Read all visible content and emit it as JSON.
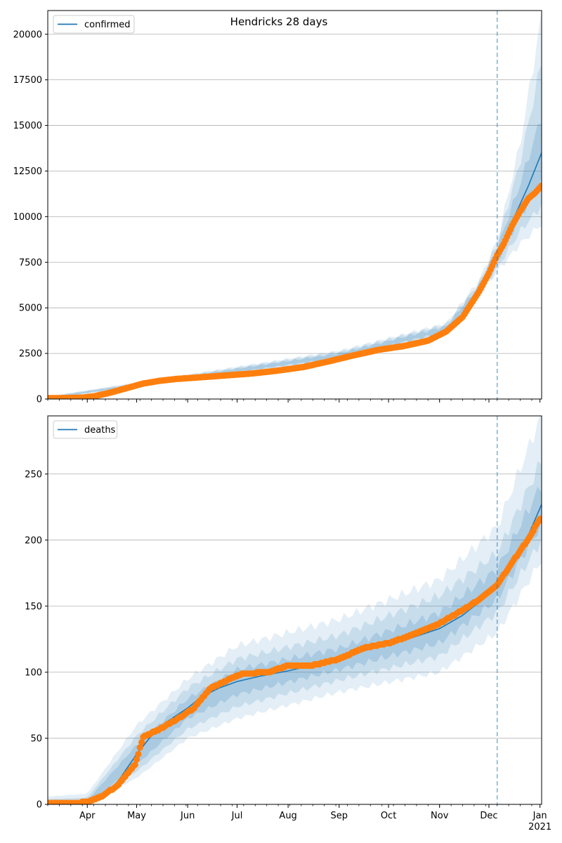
{
  "chart_data": [
    {
      "type": "line",
      "title": "Hendricks 28 days",
      "xlabel": "",
      "ylabel": "",
      "x_ticks": [
        "Apr",
        "May",
        "Jun",
        "Jul",
        "Aug",
        "Sep",
        "Oct",
        "Nov",
        "Dec",
        "Jan"
      ],
      "x_year_label": "2021",
      "xlim": [
        "2020-03-08",
        "2021-01-02"
      ],
      "ylim": [
        0,
        21300
      ],
      "y_ticks": [
        0,
        2500,
        5000,
        7500,
        10000,
        12500,
        15000,
        17500,
        20000
      ],
      "grid": "horizontal",
      "legend": {
        "placement": "top-left",
        "entries": [
          "confirmed"
        ]
      },
      "forecast_start": "2020-12-06",
      "colors": {
        "model": "#1f77b4",
        "observed": "#ff7f0e",
        "band": "#1f77b4"
      },
      "series": [
        {
          "name": "confirmed",
          "kind": "model-median",
          "x": [
            "2020-03-08",
            "2020-03-15",
            "2020-03-22",
            "2020-03-29",
            "2020-04-05",
            "2020-04-15",
            "2020-04-25",
            "2020-05-05",
            "2020-05-15",
            "2020-05-25",
            "2020-06-10",
            "2020-06-25",
            "2020-07-10",
            "2020-07-25",
            "2020-08-10",
            "2020-08-25",
            "2020-09-10",
            "2020-09-25",
            "2020-10-10",
            "2020-10-25",
            "2020-11-05",
            "2020-11-15",
            "2020-11-25",
            "2020-12-06",
            "2020-12-15",
            "2020-12-25",
            "2021-01-02"
          ],
          "y": [
            50,
            50,
            60,
            80,
            150,
            350,
            600,
            850,
            1000,
            1100,
            1200,
            1300,
            1400,
            1500,
            1700,
            2000,
            2350,
            2650,
            2900,
            3300,
            3800,
            4600,
            6000,
            7900,
            9700,
            11700,
            13500
          ]
        },
        {
          "kind": "observed",
          "x": [
            "2020-03-08",
            "2020-03-15",
            "2020-03-22",
            "2020-03-29",
            "2020-04-05",
            "2020-04-15",
            "2020-04-25",
            "2020-05-05",
            "2020-05-15",
            "2020-05-25",
            "2020-06-10",
            "2020-06-25",
            "2020-07-10",
            "2020-07-25",
            "2020-08-10",
            "2020-08-25",
            "2020-09-10",
            "2020-09-25",
            "2020-10-10",
            "2020-10-25",
            "2020-11-05",
            "2020-11-15",
            "2020-11-25",
            "2020-12-01",
            "2020-12-06",
            "2020-12-10",
            "2020-12-15",
            "2020-12-20",
            "2020-12-25",
            "2020-12-29",
            "2021-01-02"
          ],
          "y": [
            50,
            50,
            60,
            80,
            150,
            350,
            600,
            850,
            1000,
            1100,
            1200,
            1300,
            1400,
            1550,
            1750,
            2050,
            2400,
            2700,
            2900,
            3200,
            3700,
            4500,
            5900,
            6900,
            7900,
            8500,
            9500,
            10300,
            11000,
            11300,
            11700
          ]
        }
      ],
      "bands": [
        {
          "x": [
            "2020-03-08",
            "2020-06-01",
            "2020-09-01",
            "2020-11-05",
            "2020-11-25",
            "2020-12-06",
            "2020-12-20",
            "2021-01-02"
          ],
          "lower": [
            0,
            1050,
            2150,
            3550,
            5600,
            7000,
            8500,
            9600
          ],
          "upper": [
            150,
            1350,
            2650,
            4150,
            6500,
            8700,
            14000,
            21000
          ]
        },
        {
          "x": [
            "2020-03-08",
            "2020-06-01",
            "2020-09-01",
            "2020-11-05",
            "2020-11-25",
            "2020-12-06",
            "2020-12-20",
            "2021-01-02"
          ],
          "lower": [
            20,
            1080,
            2200,
            3620,
            5700,
            7200,
            9200,
            10600
          ],
          "upper": [
            120,
            1300,
            2580,
            4080,
            6350,
            8500,
            13000,
            18500
          ]
        },
        {
          "x": [
            "2020-03-08",
            "2020-06-01",
            "2020-09-01",
            "2020-11-05",
            "2020-11-25",
            "2020-12-06",
            "2020-12-20",
            "2021-01-02"
          ],
          "lower": [
            40,
            1120,
            2260,
            3700,
            5820,
            7500,
            10000,
            11900
          ],
          "upper": [
            90,
            1250,
            2500,
            3980,
            6200,
            8250,
            11800,
            15500
          ]
        }
      ]
    },
    {
      "type": "line",
      "title": "",
      "xlabel": "",
      "ylabel": "",
      "x_ticks": [
        "Apr",
        "May",
        "Jun",
        "Jul",
        "Aug",
        "Sep",
        "Oct",
        "Nov",
        "Dec",
        "Jan"
      ],
      "x_year_label": "2021",
      "xlim": [
        "2020-03-08",
        "2021-01-02"
      ],
      "ylim": [
        0,
        294
      ],
      "y_ticks": [
        0,
        50,
        100,
        150,
        200,
        250
      ],
      "grid": "horizontal",
      "legend": {
        "placement": "top-left",
        "entries": [
          "deaths"
        ]
      },
      "forecast_start": "2020-12-06",
      "colors": {
        "model": "#1f77b4",
        "observed": "#ff7f0e",
        "band": "#1f77b4"
      },
      "series": [
        {
          "name": "deaths",
          "kind": "model-median",
          "x": [
            "2020-03-08",
            "2020-03-20",
            "2020-04-01",
            "2020-04-10",
            "2020-04-20",
            "2020-05-01",
            "2020-05-10",
            "2020-05-20",
            "2020-06-01",
            "2020-06-10",
            "2020-06-20",
            "2020-07-01",
            "2020-07-15",
            "2020-08-01",
            "2020-08-15",
            "2020-09-01",
            "2020-09-15",
            "2020-10-01",
            "2020-10-15",
            "2020-11-01",
            "2020-11-15",
            "2020-11-25",
            "2020-12-06",
            "2020-12-15",
            "2020-12-25",
            "2021-01-02"
          ],
          "y": [
            0,
            0,
            1,
            5,
            18,
            38,
            52,
            63,
            73,
            82,
            88,
            93,
            97,
            101,
            105,
            110,
            116,
            121,
            126,
            133,
            143,
            153,
            166,
            182,
            204,
            227
          ]
        },
        {
          "kind": "observed",
          "x": [
            "2020-03-08",
            "2020-03-25",
            "2020-04-01",
            "2020-04-10",
            "2020-04-20",
            "2020-04-30",
            "2020-05-05",
            "2020-05-15",
            "2020-05-25",
            "2020-06-05",
            "2020-06-15",
            "2020-06-25",
            "2020-07-05",
            "2020-07-20",
            "2020-08-01",
            "2020-08-15",
            "2020-09-01",
            "2020-09-15",
            "2020-10-01",
            "2020-10-15",
            "2020-11-01",
            "2020-11-15",
            "2020-11-25",
            "2020-12-06",
            "2020-12-15",
            "2020-12-25",
            "2021-01-01"
          ],
          "y": [
            1,
            1,
            2,
            6,
            15,
            30,
            51,
            57,
            64,
            73,
            88,
            94,
            99,
            100,
            105,
            105,
            110,
            118,
            122,
            128,
            137,
            147,
            155,
            166,
            183,
            201,
            216
          ]
        }
      ],
      "bands": [
        {
          "x": [
            "2020-03-08",
            "2020-04-01",
            "2020-05-01",
            "2020-06-01",
            "2020-07-01",
            "2020-09-01",
            "2020-11-01",
            "2020-12-06",
            "2021-01-02"
          ],
          "lower": [
            0,
            0,
            20,
            50,
            65,
            85,
            100,
            130,
            185
          ],
          "upper": [
            6,
            8,
            60,
            95,
            120,
            140,
            170,
            210,
            295
          ]
        },
        {
          "x": [
            "2020-03-08",
            "2020-04-01",
            "2020-05-01",
            "2020-06-01",
            "2020-07-01",
            "2020-09-01",
            "2020-11-01",
            "2020-12-06",
            "2021-01-02"
          ],
          "lower": [
            0,
            0,
            25,
            57,
            74,
            94,
            112,
            145,
            200
          ],
          "upper": [
            4,
            5,
            52,
            88,
            110,
            128,
            158,
            190,
            260
          ]
        },
        {
          "x": [
            "2020-03-08",
            "2020-04-01",
            "2020-05-01",
            "2020-06-01",
            "2020-07-01",
            "2020-09-01",
            "2020-11-01",
            "2020-12-06",
            "2021-01-02"
          ],
          "lower": [
            0,
            0,
            30,
            65,
            83,
            102,
            122,
            155,
            212
          ],
          "upper": [
            2,
            3,
            45,
            80,
            102,
            118,
            145,
            178,
            242
          ]
        }
      ]
    }
  ]
}
